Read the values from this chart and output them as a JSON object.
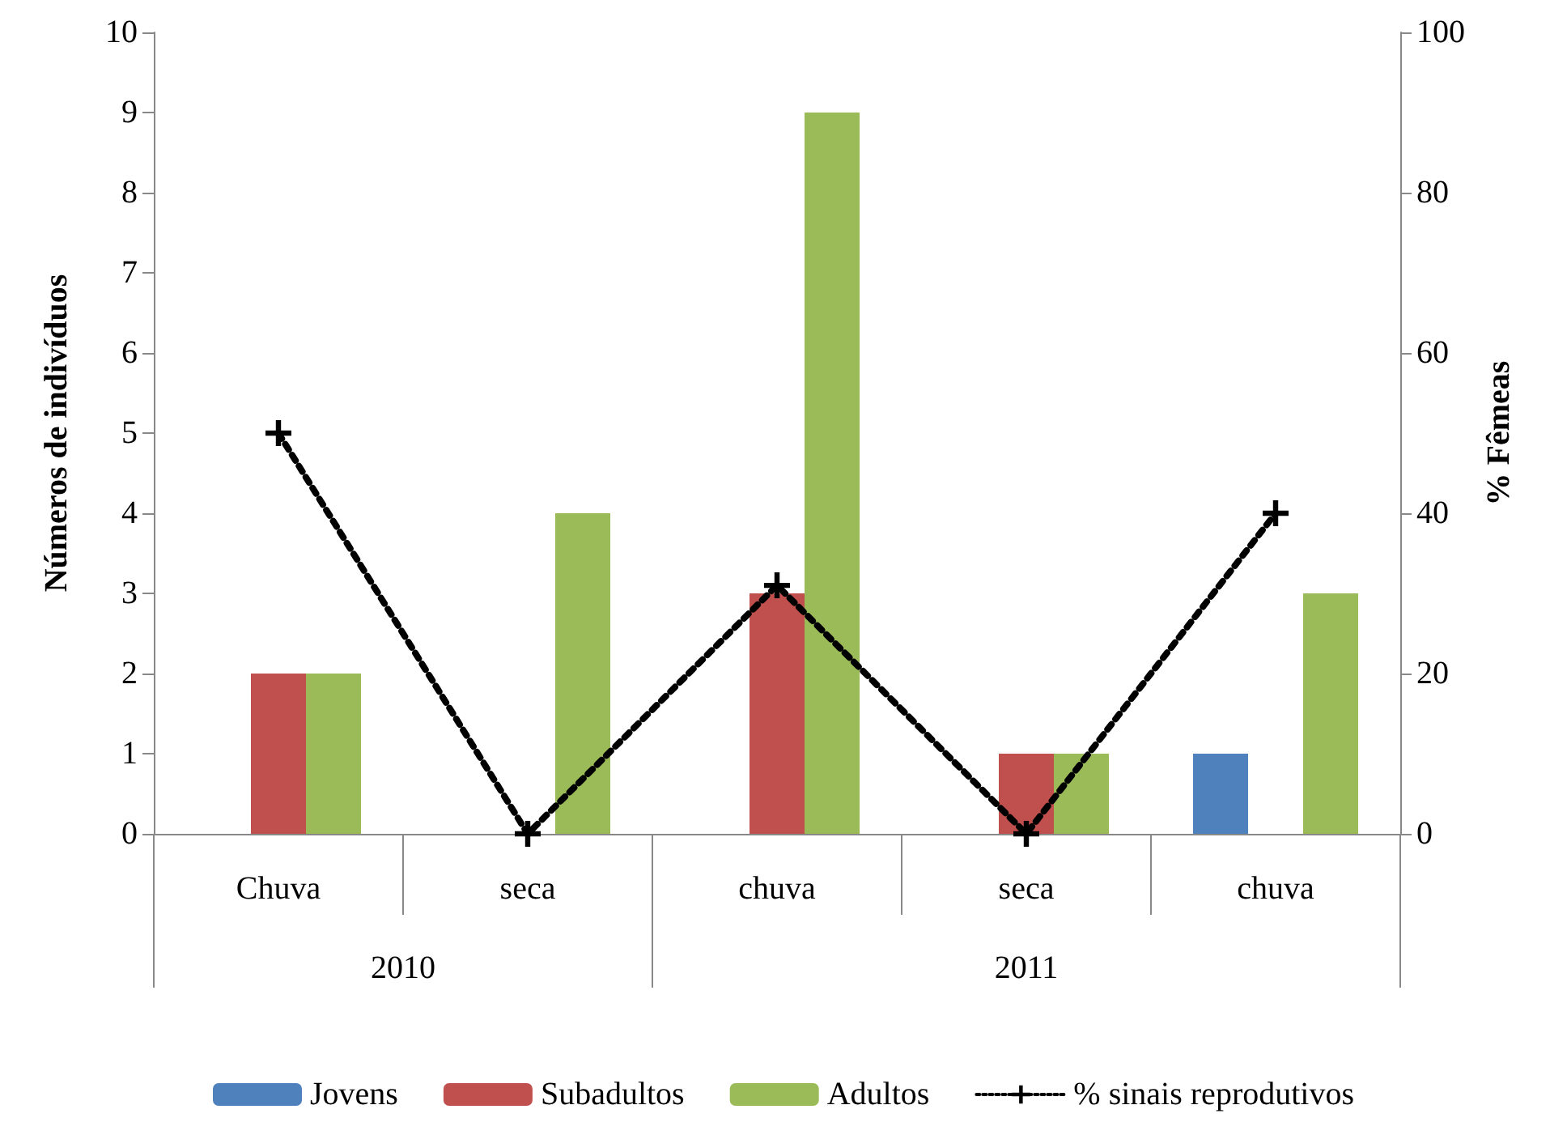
{
  "chart_data": {
    "type": "bar",
    "categories": [
      "Chuva",
      "seca",
      "chuva",
      "seca",
      "chuva"
    ],
    "series": [
      {
        "name": "Jovens",
        "color": "#4f81bd",
        "values": [
          0,
          0,
          0,
          0,
          1
        ]
      },
      {
        "name": "Subadultos",
        "color": "#c0504d",
        "values": [
          2,
          0,
          3,
          1,
          0
        ]
      },
      {
        "name": "Adultos",
        "color": "#9bbb59",
        "values": [
          2,
          4,
          9,
          1,
          3
        ]
      },
      {
        "name": "% sinais reprodutivos",
        "type": "line",
        "axis": "y2",
        "color": "#000000",
        "values": [
          50,
          0,
          31,
          0,
          40
        ],
        "marker": "cross",
        "line_style": "dotted"
      }
    ],
    "ylabel": "Números de indivíduos",
    "y2label": "% Fêmeas",
    "ylim": [
      0,
      10
    ],
    "yticks": [
      0,
      1,
      2,
      3,
      4,
      5,
      6,
      7,
      8,
      9,
      10
    ],
    "y2lim": [
      0,
      100
    ],
    "y2ticks": [
      0,
      20,
      40,
      60,
      80,
      100
    ],
    "annotations": [
      "2010",
      "2011"
    ],
    "grid": false,
    "legend": "bottom"
  }
}
